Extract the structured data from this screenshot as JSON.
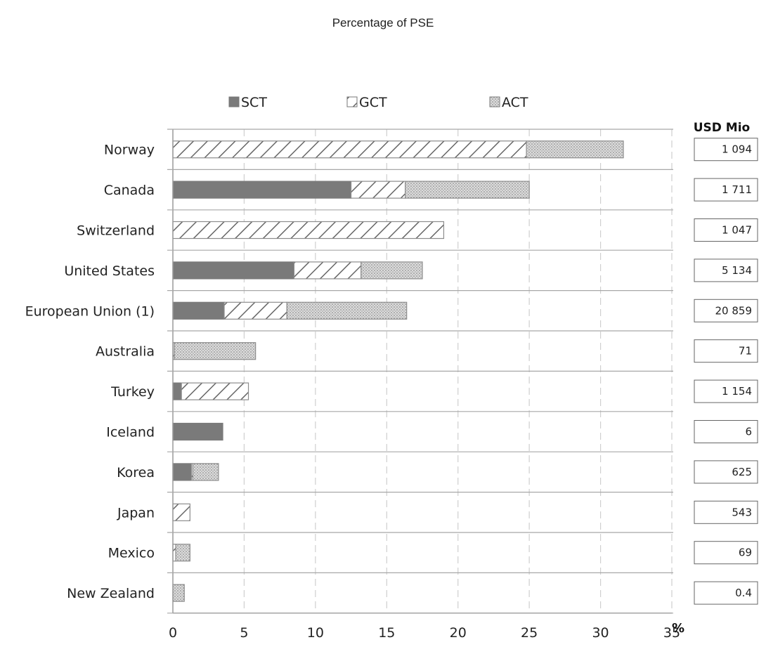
{
  "chart_data": {
    "type": "bar",
    "orientation": "horizontal",
    "stacked": true,
    "title": "Percentage of PSE",
    "xunit": "%",
    "xlim": [
      0,
      35
    ],
    "xticks": [
      "0",
      "5",
      "10",
      "15",
      "20",
      "25",
      "30",
      "35"
    ],
    "grid": true,
    "legend_position": "top",
    "categories": [
      "Norway",
      "Canada",
      "Switzerland",
      "United States",
      "European Union (1)",
      "Australia",
      "Turkey",
      "Iceland",
      "Korea",
      "Japan",
      "Mexico",
      "New Zealand"
    ],
    "series": [
      {
        "name": "SCT",
        "pattern": "solid",
        "color": "#7a7a7a",
        "values": [
          0.0,
          12.5,
          0.0,
          8.5,
          3.6,
          0.0,
          0.6,
          3.5,
          1.3,
          0.0,
          0.0,
          0.0
        ]
      },
      {
        "name": "GCT",
        "pattern": "hatch",
        "color": "#8a8a8a",
        "values": [
          24.8,
          3.8,
          19.0,
          4.7,
          4.4,
          0.1,
          4.7,
          0.0,
          0.1,
          1.2,
          0.2,
          0.0
        ]
      },
      {
        "name": "ACT",
        "pattern": "dots",
        "color": "#a8a8a8",
        "values": [
          6.8,
          8.7,
          0.0,
          4.3,
          8.4,
          5.7,
          0.0,
          0.0,
          1.8,
          0.0,
          1.0,
          0.8
        ]
      }
    ],
    "usd_header": "USD Mio",
    "usd_values": [
      "1 094",
      "1 711",
      "1 047",
      "5 134",
      "20 859",
      "71",
      "1 154",
      "6",
      "625",
      "543",
      "69",
      "0.4"
    ]
  }
}
